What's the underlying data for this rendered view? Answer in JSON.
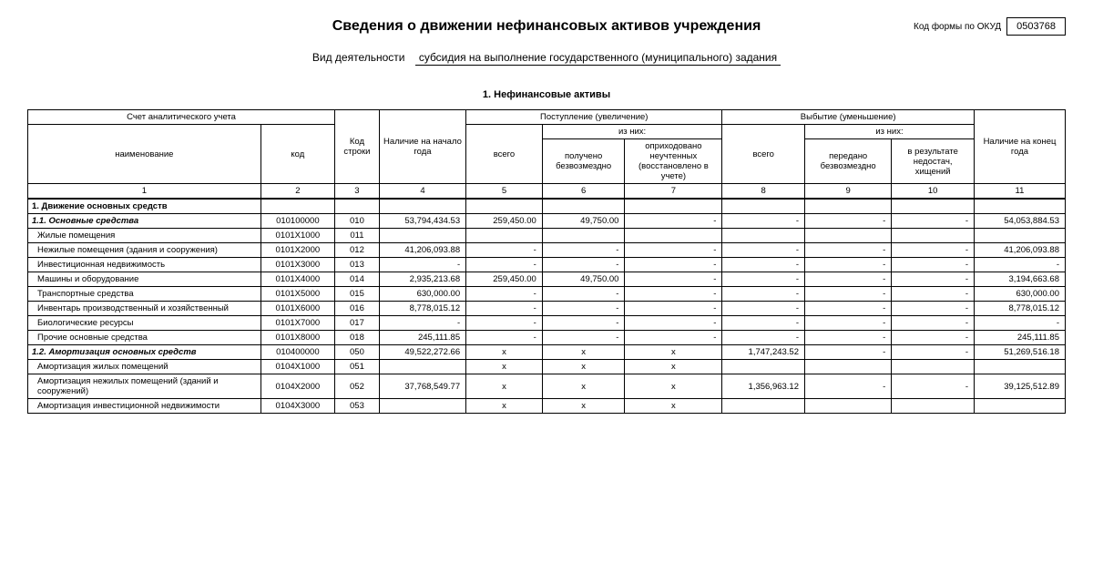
{
  "title": "Сведения о движении нефинансовых активов учреждения",
  "okud_label": "Код формы по ОКУД",
  "okud_code": "0503768",
  "activity_label": "Вид деятельности",
  "activity_value": "субсидия на выполнение государственного (муниципального) задания",
  "section_title": "1. Нефинансовые активы",
  "head": {
    "acct": "Счет аналитического учета",
    "name": "наименование",
    "code": "код",
    "line": "Код строки",
    "start": "Наличие на начало года",
    "in": "Поступление (увеличение)",
    "in_total": "всего",
    "in_of": "из них:",
    "in_free": "получено безвозмездно",
    "in_unacc": "оприходовано неучтенных (восстановлено в учете)",
    "out": "Выбытие (уменьшение)",
    "out_total": "всего",
    "out_of": "из них:",
    "out_free": "передано безвозмездно",
    "out_short": "в результате недостач, хищений",
    "end": "Наличие на конец года"
  },
  "colnums": [
    "1",
    "2",
    "3",
    "4",
    "5",
    "6",
    "7",
    "8",
    "9",
    "10",
    "11"
  ],
  "rows": [
    {
      "cls": "section bold-top",
      "name": "1. Движение основных средств",
      "code": "",
      "line": "",
      "c4": "",
      "c5": "",
      "c6": "",
      "c7": "",
      "c8": "",
      "c9": "",
      "c10": "",
      "c11": ""
    },
    {
      "cls": "sub1",
      "name": "1.1. Основные средства",
      "code": "010100000",
      "line": "010",
      "c4": "53,794,434.53",
      "c5": "259,450.00",
      "c6": "49,750.00",
      "c7": "-",
      "c8": "-",
      "c9": "-",
      "c10": "-",
      "c11": "54,053,884.53"
    },
    {
      "cls": "",
      "name": "Жилые помещения",
      "code": "0101X1000",
      "line": "011",
      "c4": "",
      "c5": "",
      "c6": "",
      "c7": "",
      "c8": "",
      "c9": "",
      "c10": "",
      "c11": ""
    },
    {
      "cls": "",
      "name": "Нежилые помещения (здания и сооружения)",
      "code": "0101X2000",
      "line": "012",
      "c4": "41,206,093.88",
      "c5": "-",
      "c6": "-",
      "c7": "-",
      "c8": "-",
      "c9": "-",
      "c10": "-",
      "c11": "41,206,093.88"
    },
    {
      "cls": "",
      "name": "Инвестиционная недвижимость",
      "code": "0101X3000",
      "line": "013",
      "c4": "-",
      "c5": "-",
      "c6": "-",
      "c7": "-",
      "c8": "-",
      "c9": "-",
      "c10": "-",
      "c11": "-"
    },
    {
      "cls": "",
      "name": "Машины и оборудование",
      "code": "0101X4000",
      "line": "014",
      "c4": "2,935,213.68",
      "c5": "259,450.00",
      "c6": "49,750.00",
      "c7": "-",
      "c8": "-",
      "c9": "-",
      "c10": "-",
      "c11": "3,194,663.68"
    },
    {
      "cls": "",
      "name": "Транспортные средства",
      "code": "0101X5000",
      "line": "015",
      "c4": "630,000.00",
      "c5": "-",
      "c6": "-",
      "c7": "-",
      "c8": "-",
      "c9": "-",
      "c10": "-",
      "c11": "630,000.00"
    },
    {
      "cls": "",
      "name": "Инвентарь производственный и хозяйственный",
      "code": "0101X6000",
      "line": "016",
      "c4": "8,778,015.12",
      "c5": "-",
      "c6": "-",
      "c7": "-",
      "c8": "-",
      "c9": "-",
      "c10": "-",
      "c11": "8,778,015.12"
    },
    {
      "cls": "",
      "name": "Биологические ресурсы",
      "code": "0101X7000",
      "line": "017",
      "c4": "-",
      "c5": "-",
      "c6": "-",
      "c7": "-",
      "c8": "-",
      "c9": "-",
      "c10": "-",
      "c11": "-"
    },
    {
      "cls": "",
      "name": "Прочие основные средства",
      "code": "0101X8000",
      "line": "018",
      "c4": "245,111.85",
      "c5": "-",
      "c6": "-",
      "c7": "-",
      "c8": "-",
      "c9": "-",
      "c10": "-",
      "c11": "245,111.85"
    },
    {
      "cls": "sub1",
      "name": "1.2. Амортизация основных средств",
      "code": "010400000",
      "line": "050",
      "c4": "49,522,272.66",
      "c5": "x",
      "c6": "x",
      "c7": "x",
      "c8": "1,747,243.52",
      "c9": "-",
      "c10": "-",
      "c11": "51,269,516.18"
    },
    {
      "cls": "",
      "name": "Амортизация жилых помещений",
      "code": "0104X1000",
      "line": "051",
      "c4": "",
      "c5": "x",
      "c6": "x",
      "c7": "x",
      "c8": "",
      "c9": "",
      "c10": "",
      "c11": ""
    },
    {
      "cls": "",
      "name": "Амортизация нежилых помещений (зданий и сооружений)",
      "code": "0104X2000",
      "line": "052",
      "c4": "37,768,549.77",
      "c5": "x",
      "c6": "x",
      "c7": "x",
      "c8": "1,356,963.12",
      "c9": "-",
      "c10": "-",
      "c11": "39,125,512.89"
    },
    {
      "cls": "",
      "name": "Амортизация инвестиционной недвижимости",
      "code": "0104X3000",
      "line": "053",
      "c4": "",
      "c5": "x",
      "c6": "x",
      "c7": "x",
      "c8": "",
      "c9": "",
      "c10": "",
      "c11": ""
    }
  ]
}
